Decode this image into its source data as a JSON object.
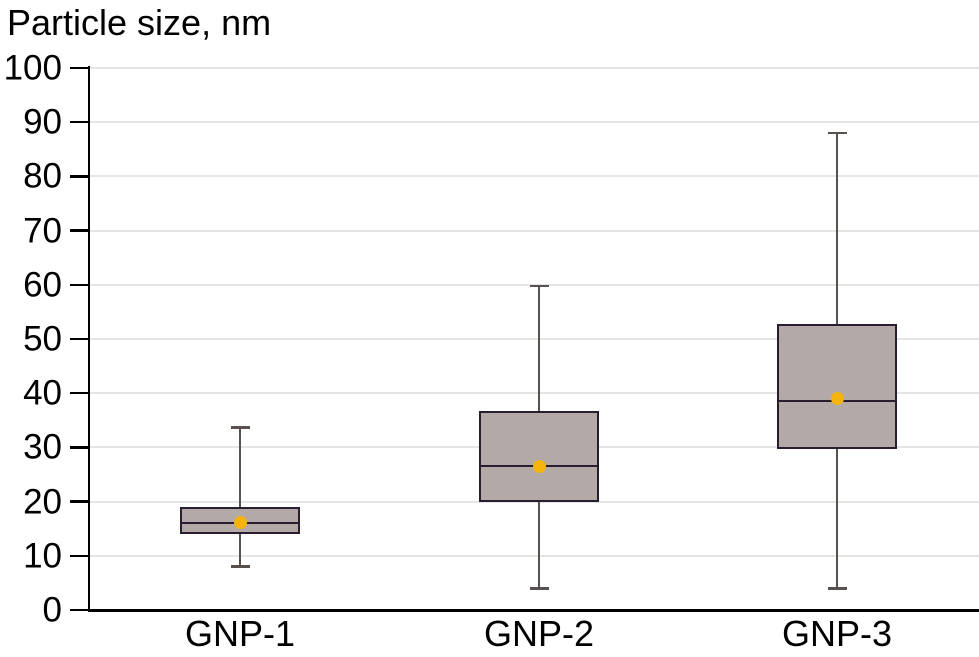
{
  "title": "Particle size, nm",
  "chart_data": {
    "type": "boxplot",
    "title": "Particle size, nm",
    "xlabel": "",
    "ylabel": "Particle size, nm",
    "categories": [
      "GNP-1",
      "GNP-2",
      "GNP-3"
    ],
    "series": [
      {
        "name": "GNP-1",
        "whisker_low": 8,
        "q1": 14,
        "median": 16,
        "mean": 16.2,
        "q3": 19,
        "whisker_high": 33.7
      },
      {
        "name": "GNP-2",
        "whisker_low": 4,
        "q1": 20,
        "median": 26.6,
        "mean": 26.5,
        "q3": 36.8,
        "whisker_high": 59.8
      },
      {
        "name": "GNP-3",
        "whisker_low": 4,
        "q1": 29.7,
        "median": 38.6,
        "mean": 39,
        "q3": 52.7,
        "whisker_high": 88
      }
    ],
    "ylim": [
      0,
      100
    ],
    "yticks": [
      0,
      10,
      20,
      30,
      40,
      50,
      60,
      70,
      80,
      90,
      100
    ],
    "grid": true,
    "legend": "none"
  },
  "colors": {
    "box_fill": "#b3aaa8",
    "box_border": "#281e30",
    "median_line": "#281e30",
    "whisker": "#575150",
    "mean_dot": "#f4b30d",
    "gridline": "#e7e5e4",
    "axis": "#000000",
    "text": "#000000"
  }
}
